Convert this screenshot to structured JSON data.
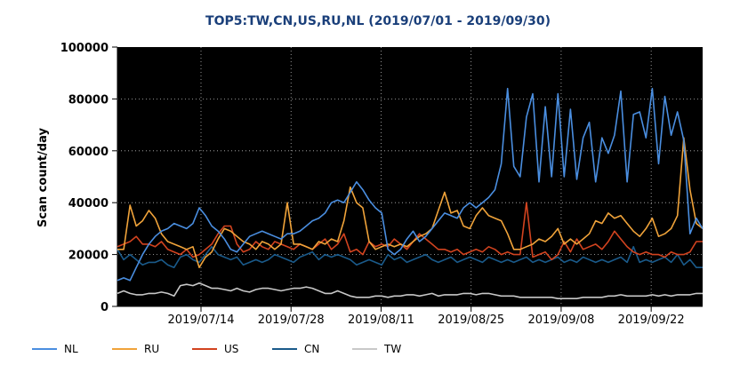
{
  "chart_data": {
    "type": "line",
    "title": "TOP5:TW,CN,US,RU,NL (2019/07/01 - 2019/09/30)",
    "xlabel": "",
    "ylabel": "Scan count/day",
    "ylim": [
      0,
      100000
    ],
    "yticks": [
      "0",
      "20000",
      "40000",
      "60000",
      "80000",
      "100000"
    ],
    "xrange": [
      "2019/07/01",
      "2019/09/30"
    ],
    "xticks": [
      "2019/07/14",
      "2019/07/28",
      "2019/08/11",
      "2019/08/25",
      "2019/09/08",
      "2019/09/22"
    ],
    "grid": true,
    "legend": "bottom",
    "background": "#000000",
    "grid_color": "#bbbbbb",
    "series": [
      {
        "name": "NL",
        "color": "#4a8ee0",
        "values": [
          10000,
          11000,
          10000,
          15000,
          20000,
          24000,
          27000,
          29000,
          30000,
          32000,
          31000,
          30000,
          32000,
          38000,
          35000,
          31000,
          29000,
          26000,
          22000,
          21000,
          24000,
          27000,
          28000,
          29000,
          28000,
          27000,
          26000,
          28000,
          28000,
          29000,
          31000,
          33000,
          34000,
          36000,
          40000,
          41000,
          40000,
          44000,
          48000,
          45000,
          41000,
          38000,
          36000,
          22000,
          20000,
          22000,
          26000,
          29000,
          25000,
          27000,
          30000,
          33000,
          36000,
          35000,
          34000,
          38000,
          40000,
          38000,
          40000,
          42000,
          45000,
          55000,
          84000,
          54000,
          50000,
          73000,
          82000,
          48000,
          77000,
          50000,
          82000,
          50000,
          76000,
          49000,
          65000,
          71000,
          48000,
          65000,
          59000,
          66000,
          83000,
          48000,
          74000,
          75000,
          65000,
          84000,
          55000,
          81000,
          66000,
          75000,
          64000,
          28000,
          34000,
          30000
        ]
      },
      {
        "name": "RU",
        "color": "#f0a33a",
        "values": [
          22000,
          22000,
          39000,
          31000,
          33000,
          37000,
          34000,
          28000,
          25000,
          24000,
          23000,
          22000,
          23000,
          15000,
          19000,
          21000,
          26000,
          30000,
          29000,
          27000,
          25000,
          24000,
          22000,
          25000,
          24000,
          22000,
          24000,
          40000,
          24000,
          24000,
          23000,
          22000,
          25000,
          24000,
          26000,
          25000,
          33000,
          46000,
          40000,
          38000,
          25000,
          22000,
          23000,
          24000,
          23000,
          24000,
          23000,
          25000,
          27000,
          28000,
          30000,
          37000,
          44000,
          36000,
          37000,
          31000,
          30000,
          35000,
          38000,
          35000,
          34000,
          33000,
          28000,
          22000,
          22000,
          23000,
          24000,
          26000,
          25000,
          27000,
          30000,
          24000,
          26000,
          24000,
          26000,
          28000,
          33000,
          32000,
          36000,
          34000,
          35000,
          32000,
          29000,
          27000,
          30000,
          34000,
          27000,
          28000,
          30000,
          35000,
          65000,
          45000,
          32000,
          30000
        ]
      },
      {
        "name": "US",
        "color": "#d2431f",
        "values": [
          23000,
          24000,
          25000,
          27000,
          24000,
          24000,
          23000,
          25000,
          22000,
          21000,
          20000,
          22000,
          19000,
          20000,
          22000,
          24000,
          28000,
          31000,
          31000,
          24000,
          21000,
          22000,
          25000,
          23000,
          22000,
          25000,
          24000,
          23000,
          22000,
          24000,
          23000,
          22000,
          24000,
          26000,
          22000,
          24000,
          28000,
          21000,
          22000,
          20000,
          25000,
          23000,
          24000,
          23000,
          26000,
          24000,
          22000,
          25000,
          28000,
          26000,
          24000,
          22000,
          22000,
          21000,
          22000,
          20000,
          21000,
          22000,
          21000,
          23000,
          22000,
          20000,
          21000,
          20000,
          20000,
          40000,
          19000,
          20000,
          21000,
          18000,
          20000,
          25000,
          21000,
          26000,
          22000,
          23000,
          24000,
          22000,
          25000,
          29000,
          26000,
          23000,
          21000,
          20000,
          21000,
          20000,
          20000,
          19000,
          21000,
          20000,
          20000,
          21000,
          25000,
          25000
        ]
      },
      {
        "name": "CN",
        "color": "#1a5a8a",
        "values": [
          22000,
          18000,
          20000,
          18000,
          16000,
          17000,
          17000,
          18000,
          16000,
          15000,
          19000,
          20000,
          18000,
          17000,
          20000,
          23000,
          20000,
          19000,
          18000,
          19000,
          16000,
          17000,
          18000,
          17000,
          18000,
          20000,
          19000,
          18000,
          17000,
          19000,
          20000,
          21000,
          18000,
          20000,
          19000,
          20000,
          19000,
          18000,
          16000,
          17000,
          18000,
          17000,
          16000,
          20000,
          18000,
          19000,
          17000,
          18000,
          19000,
          20000,
          18000,
          17000,
          18000,
          19000,
          17000,
          18000,
          19000,
          18000,
          17000,
          19000,
          18000,
          17000,
          18000,
          17000,
          18000,
          19000,
          17000,
          18000,
          17000,
          18000,
          19000,
          17000,
          18000,
          17000,
          19000,
          18000,
          17000,
          18000,
          17000,
          18000,
          19000,
          17000,
          23000,
          17000,
          18000,
          17000,
          18000,
          19000,
          17000,
          20000,
          16000,
          18000,
          15000,
          15000
        ]
      },
      {
        "name": "TW",
        "color": "#c8c8c8",
        "values": [
          5000,
          6000,
          5000,
          4500,
          4500,
          5000,
          5000,
          5500,
          5000,
          4000,
          8000,
          8500,
          8000,
          9000,
          8000,
          7000,
          7000,
          6500,
          6000,
          7000,
          6000,
          5500,
          6500,
          7000,
          7000,
          6500,
          6000,
          6500,
          7000,
          7000,
          7500,
          7000,
          6000,
          5000,
          5000,
          6000,
          5000,
          4000,
          3500,
          3500,
          3500,
          4000,
          4000,
          3500,
          4000,
          4000,
          4500,
          4500,
          4000,
          4500,
          5000,
          4000,
          4500,
          4500,
          4500,
          5000,
          5000,
          4500,
          5000,
          5000,
          4500,
          4000,
          4000,
          4000,
          3500,
          3500,
          3500,
          3500,
          3500,
          3500,
          3000,
          3000,
          3000,
          3000,
          3500,
          3500,
          3500,
          3500,
          4000,
          4000,
          4500,
          4000,
          4000,
          4000,
          4000,
          4500,
          4000,
          4500,
          4000,
          4500,
          4500,
          4500,
          5000,
          5000
        ]
      }
    ]
  }
}
